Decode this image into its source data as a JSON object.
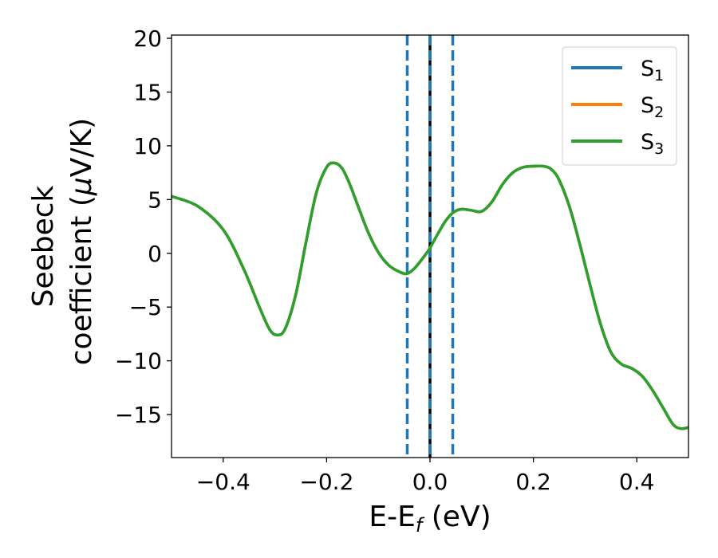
{
  "chart_data": {
    "type": "line",
    "xlabel": {
      "main": "E-E",
      "sub": "f",
      "tail": " (eV)"
    },
    "ylabel": {
      "line1": "Seebeck",
      "line2_prefix": "coefficient  (",
      "mu": "μ",
      "line2_suffix": "V/K)"
    },
    "xlim": [
      -0.5,
      0.5
    ],
    "ylim": [
      -19,
      20.3
    ],
    "xticks": [
      -0.4,
      -0.2,
      0.0,
      0.2,
      0.4
    ],
    "xtick_labels": [
      "−0.4",
      "−0.2",
      "0.0",
      "0.2",
      "0.4"
    ],
    "yticks": [
      20,
      15,
      10,
      5,
      0,
      -5,
      -10,
      -15
    ],
    "ytick_labels": [
      "20",
      "15",
      "10",
      "5",
      "0",
      "−5",
      "−10",
      "−15"
    ],
    "grid": false,
    "legend_position": "top-right",
    "colors": {
      "S1": "#1f77b4",
      "S2": "#ff7f0e",
      "S3": "#2ca02c",
      "fermi": "#000000",
      "window": "#1f77b4"
    },
    "series": [
      {
        "name": "S",
        "sub": "1",
        "color": "#1f77b4",
        "points": "curve"
      },
      {
        "name": "S",
        "sub": "2",
        "color": "#ff7f0e",
        "points": "curve"
      },
      {
        "name": "S",
        "sub": "3",
        "color": "#2ca02c",
        "points": "curve"
      }
    ],
    "curve": {
      "x": [
        -0.5,
        -0.45,
        -0.4,
        -0.36,
        -0.33,
        -0.31,
        -0.295,
        -0.28,
        -0.26,
        -0.24,
        -0.22,
        -0.2,
        -0.185,
        -0.17,
        -0.155,
        -0.14,
        -0.12,
        -0.1,
        -0.08,
        -0.06,
        -0.045,
        -0.03,
        -0.01,
        0.0,
        0.015,
        0.03,
        0.045,
        0.06,
        0.08,
        0.1,
        0.12,
        0.14,
        0.16,
        0.18,
        0.2,
        0.22,
        0.235,
        0.25,
        0.27,
        0.29,
        0.31,
        0.33,
        0.35,
        0.37,
        0.39,
        0.41,
        0.43,
        0.45,
        0.47,
        0.485,
        0.5
      ],
      "y": [
        5.3,
        4.4,
        2.2,
        -1.5,
        -5.0,
        -7.1,
        -7.6,
        -7.0,
        -3.9,
        1.0,
        5.6,
        8.0,
        8.4,
        7.9,
        6.4,
        4.5,
        2.0,
        0.1,
        -1.1,
        -1.7,
        -1.9,
        -1.4,
        -0.2,
        0.5,
        1.8,
        3.0,
        3.8,
        4.1,
        4.0,
        3.9,
        4.8,
        6.4,
        7.5,
        8.0,
        8.1,
        8.1,
        7.8,
        6.8,
        4.3,
        0.8,
        -3.0,
        -6.6,
        -9.2,
        -10.3,
        -10.7,
        -11.4,
        -12.7,
        -14.3,
        -15.9,
        -16.3,
        -16.2
      ]
    },
    "vertical_lines": [
      {
        "x": -0.044,
        "style": "dashed",
        "color": "#1f77b4"
      },
      {
        "x": 0.044,
        "style": "dashed",
        "color": "#1f77b4"
      },
      {
        "x": 0.0,
        "style": "solid",
        "color": "#000000"
      },
      {
        "x": 0.0,
        "style": "dashed",
        "color": "#1f77b4"
      }
    ]
  }
}
